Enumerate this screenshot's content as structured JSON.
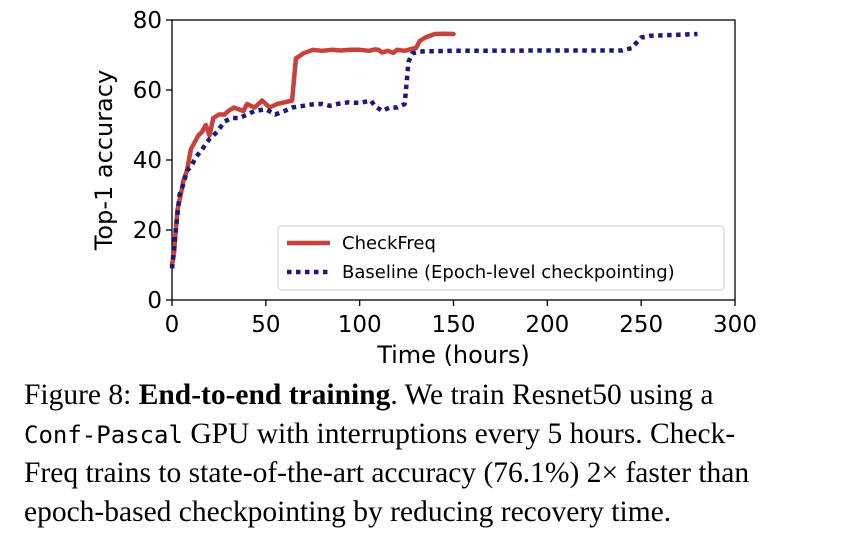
{
  "chart_data": {
    "type": "line",
    "xlabel": "Time (hours)",
    "ylabel": "Top-1 accuracy",
    "xlim": [
      0,
      300
    ],
    "ylim": [
      0,
      80
    ],
    "xticks": [
      "0",
      "50",
      "100",
      "150",
      "200",
      "250",
      "300"
    ],
    "yticks": [
      "0",
      "20",
      "40",
      "60",
      "80"
    ],
    "grid": false,
    "legend_position": "lower right",
    "series": [
      {
        "name": "CheckFreq",
        "color": "#c8413a",
        "style": "solid",
        "points": [
          [
            0,
            10
          ],
          [
            1,
            13
          ],
          [
            2,
            20
          ],
          [
            3,
            26
          ],
          [
            5,
            31
          ],
          [
            6,
            34
          ],
          [
            8,
            37
          ],
          [
            9,
            40
          ],
          [
            10,
            43
          ],
          [
            12,
            45
          ],
          [
            14,
            47
          ],
          [
            16,
            48
          ],
          [
            18,
            50
          ],
          [
            20,
            47
          ],
          [
            22,
            52
          ],
          [
            25,
            53
          ],
          [
            28,
            53
          ],
          [
            30,
            54
          ],
          [
            33,
            55
          ],
          [
            38,
            54
          ],
          [
            40,
            56
          ],
          [
            44,
            55
          ],
          [
            48,
            57
          ],
          [
            52,
            55
          ],
          [
            56,
            56
          ],
          [
            60,
            56.5
          ],
          [
            64,
            57
          ],
          [
            66,
            69
          ],
          [
            70,
            70.5
          ],
          [
            75,
            71.5
          ],
          [
            80,
            71.2
          ],
          [
            85,
            71.5
          ],
          [
            90,
            71.3
          ],
          [
            95,
            71.5
          ],
          [
            100,
            71.5
          ],
          [
            105,
            71.2
          ],
          [
            108,
            71.6
          ],
          [
            110,
            71.5
          ],
          [
            112,
            70.7
          ],
          [
            115,
            71.2
          ],
          [
            118,
            70.6
          ],
          [
            120,
            71.5
          ],
          [
            124,
            71.2
          ],
          [
            128,
            71.8
          ],
          [
            130,
            72
          ],
          [
            132,
            74
          ],
          [
            135,
            75
          ],
          [
            140,
            76
          ],
          [
            145,
            76.1
          ],
          [
            150,
            76
          ]
        ]
      },
      {
        "name": "Baseline (Epoch-level checkpointing)",
        "color": "#1b1a78",
        "style": "dotted",
        "points": [
          [
            0,
            9
          ],
          [
            2,
            20
          ],
          [
            4,
            30
          ],
          [
            6,
            33
          ],
          [
            8,
            37
          ],
          [
            10,
            38
          ],
          [
            13,
            41
          ],
          [
            16,
            43
          ],
          [
            20,
            46
          ],
          [
            24,
            48
          ],
          [
            28,
            51
          ],
          [
            32,
            52
          ],
          [
            36,
            52
          ],
          [
            40,
            53
          ],
          [
            44,
            54
          ],
          [
            50,
            54.5
          ],
          [
            55,
            53
          ],
          [
            60,
            54
          ],
          [
            64,
            55
          ],
          [
            70,
            55.5
          ],
          [
            76,
            56
          ],
          [
            80,
            56
          ],
          [
            84,
            55.5
          ],
          [
            88,
            56
          ],
          [
            94,
            56.5
          ],
          [
            100,
            56.3
          ],
          [
            106,
            57
          ],
          [
            108,
            55.5
          ],
          [
            112,
            54
          ],
          [
            116,
            55
          ],
          [
            120,
            55
          ],
          [
            124,
            56
          ],
          [
            126,
            68
          ],
          [
            128,
            70.5
          ],
          [
            132,
            71
          ],
          [
            150,
            71.2
          ],
          [
            200,
            71.3
          ],
          [
            240,
            71.3
          ],
          [
            245,
            72
          ],
          [
            250,
            75
          ],
          [
            255,
            75.5
          ],
          [
            280,
            76
          ]
        ]
      }
    ]
  },
  "caption": {
    "figure_label": "Figure 8: ",
    "bold_title": "End-to-end training",
    "line1_rest": ". We train Resnet50 using a",
    "mono_term": "Conf-Pascal",
    "line2_rest": " GPU with interruptions every 5 hours. Check-",
    "line3": "Freq trains to state-of-the-art accuracy (76.1%) 2× faster than",
    "line4": "epoch-based checkpointing by reducing recovery time."
  }
}
